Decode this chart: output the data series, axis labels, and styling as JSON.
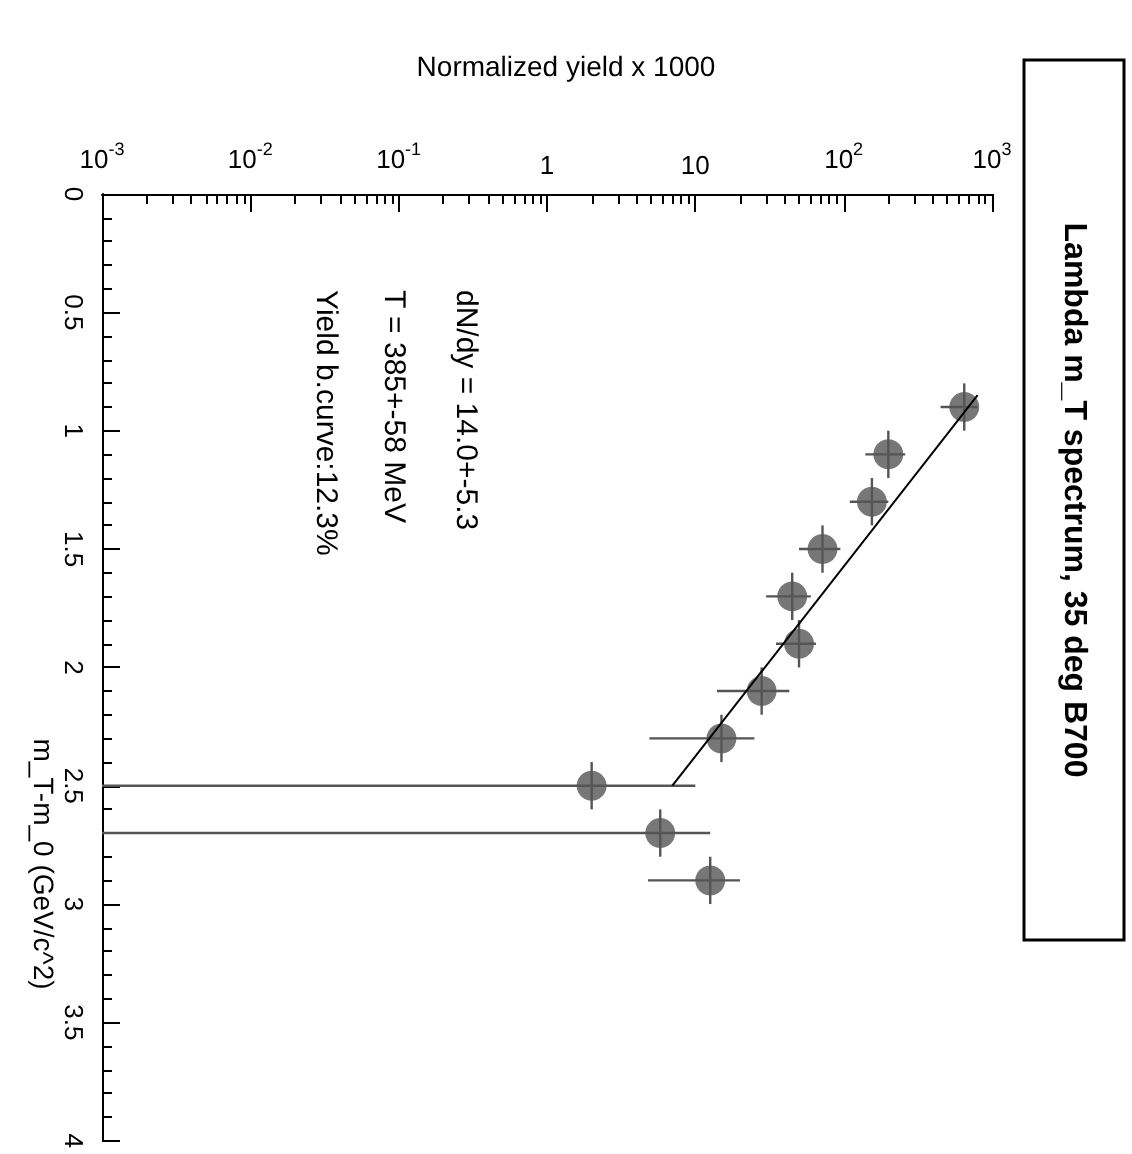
{
  "chart_data": {
    "type": "scatter",
    "title": "Lambda m_T spectrum, 35 deg B700",
    "xlabel": "Normalized yield x 1000",
    "ylabel": "m_T-m_0 (GeV/c^2)",
    "annotations": [
      "dN/dy = 14.0+-5.3",
      "T = 385+-58 MeV",
      "Yield b.curve:12.3%"
    ],
    "log": "x",
    "marker": "circle",
    "xlim": [
      0.001,
      1000
    ],
    "xticks": [
      {
        "value": 0.001,
        "label": "10$^{-3}$"
      },
      {
        "value": 0.01,
        "label": "10$^{-2}$"
      },
      {
        "value": 0.1,
        "label": "10$^{-1}$"
      },
      1,
      10,
      {
        "value": 100,
        "label": "10$^{2}$"
      },
      {
        "value": 1000,
        "label": "10$^{3}$"
      }
    ],
    "ylim": [
      4,
      0
    ],
    "yticks": [
      0,
      0.5,
      1,
      1.5,
      2,
      2.5,
      3,
      3.5,
      4
    ],
    "series": [
      {
        "color": "#555555",
        "x": [
          650,
          200,
          155,
          72,
          45,
          50,
          28,
          15,
          2.0,
          5.8,
          12.6
        ],
        "values": [
          0.9,
          1.1,
          1.3,
          1.5,
          1.7,
          1.9,
          2.1,
          2.3,
          2.5,
          2.7,
          2.9
        ],
        "xerrors": [
          [
            450,
            800
          ],
          [
            140,
            260
          ],
          [
            110,
            200
          ],
          [
            50,
            95
          ],
          [
            30,
            60
          ],
          [
            35,
            65
          ],
          [
            14,
            43
          ],
          [
            4.9,
            25
          ],
          [
            0.001,
            10
          ],
          [
            0.001,
            12.6
          ],
          [
            4.8,
            20
          ]
        ],
        "errors": [
          0.1,
          0.1,
          0.1,
          0.1,
          0.1,
          0.1,
          0.1,
          0.1,
          0.1,
          0.1,
          0.1
        ]
      },
      {
        "type": "line",
        "color": "#000000",
        "marker": "none",
        "x": [
          800,
          7
        ],
        "values": [
          0.85,
          2.5
        ]
      }
    ]
  }
}
